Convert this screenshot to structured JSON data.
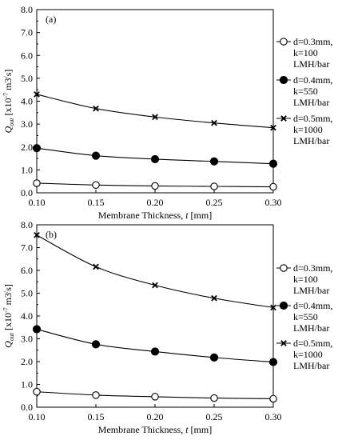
{
  "chart_data": [
    {
      "type": "line",
      "panel_label": "(a)",
      "x": [
        0.1,
        0.15,
        0.2,
        0.25,
        0.3
      ],
      "xlim": [
        0.1,
        0.3
      ],
      "ylim": [
        0.0,
        8.0
      ],
      "xticks": [
        "0.10",
        "0.15",
        "0.20",
        "0.25",
        "0.30"
      ],
      "yticks": [
        "0.0",
        "1.0",
        "2.0",
        "3.0",
        "4.0",
        "5.0",
        "6.0",
        "7.0",
        "8.0"
      ],
      "xlabel": "Membrane Thickness, t [mm]",
      "ylabel": "Qout [x10-7 m3/s]",
      "legend_position": "right",
      "series": [
        {
          "name": "d=0.3mm, k=100 LMH/bar",
          "legend_lines": [
            "d=0.3mm,",
            "k=100",
            "LMH/bar"
          ],
          "marker": "open-circle",
          "values": [
            0.42,
            0.34,
            0.3,
            0.28,
            0.26
          ]
        },
        {
          "name": "d=0.4mm, k=550 LMH/bar",
          "legend_lines": [
            "d=0.4mm,",
            "k=550",
            "LMH/bar"
          ],
          "marker": "filled-circle",
          "values": [
            1.95,
            1.62,
            1.47,
            1.37,
            1.27
          ]
        },
        {
          "name": "d=0.5mm, k=1000 LMH/bar",
          "legend_lines": [
            "d=0.5mm,",
            "k=1000",
            "LMH/bar"
          ],
          "marker": "x",
          "values": [
            4.3,
            3.68,
            3.31,
            3.05,
            2.84
          ]
        }
      ]
    },
    {
      "type": "line",
      "panel_label": "(b)",
      "x": [
        0.1,
        0.15,
        0.2,
        0.25,
        0.3
      ],
      "xlim": [
        0.1,
        0.3
      ],
      "ylim": [
        0.0,
        8.0
      ],
      "xticks": [
        "0.10",
        "0.15",
        "0.20",
        "0.25",
        "0.30"
      ],
      "yticks": [
        "0.0",
        "1.0",
        "2.0",
        "3.0",
        "4.0",
        "5.0",
        "6.0",
        "7.0",
        "8.0"
      ],
      "xlabel": "Membrane Thickness, t [mm]",
      "ylabel": "Qout [x10-7 m3/s]",
      "legend_position": "right",
      "series": [
        {
          "name": "d=0.3mm, k=100 LMH/bar",
          "legend_lines": [
            "d=0.3mm,",
            "k=100",
            "LMH/bar"
          ],
          "marker": "open-circle",
          "values": [
            0.68,
            0.53,
            0.46,
            0.4,
            0.37
          ]
        },
        {
          "name": "d=0.4mm, k=550 LMH/bar",
          "legend_lines": [
            "d=0.4mm,",
            "k=550",
            "LMH/bar"
          ],
          "marker": "filled-circle",
          "values": [
            3.42,
            2.76,
            2.44,
            2.18,
            1.98
          ]
        },
        {
          "name": "d=0.5mm, k=1000 LMH/bar",
          "legend_lines": [
            "d=0.5mm,",
            "k=1000",
            "LMH/bar"
          ],
          "marker": "x",
          "values": [
            7.55,
            6.16,
            5.35,
            4.78,
            4.37
          ]
        }
      ]
    }
  ]
}
